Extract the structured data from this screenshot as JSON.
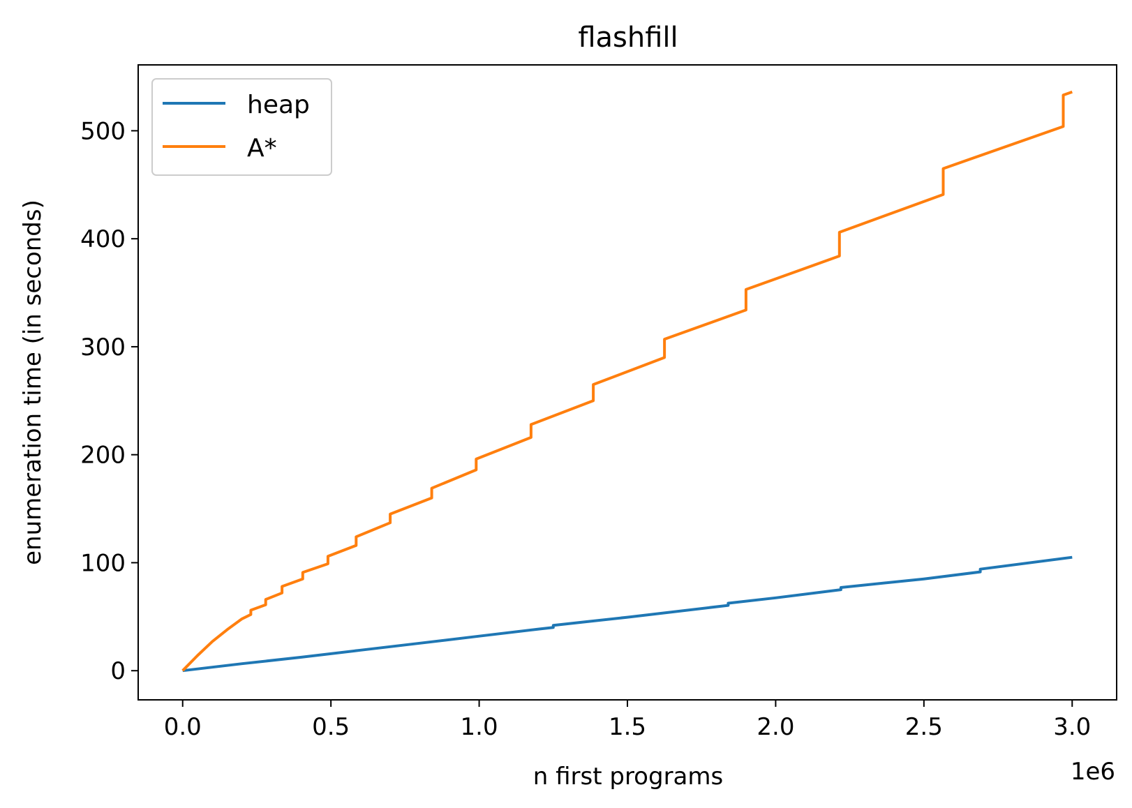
{
  "chart_data": {
    "type": "line",
    "title": "flashfill",
    "xlabel": "n first programs",
    "ylabel": "enumeration time (in seconds)",
    "x_offset_label": "1e6",
    "xlim": [
      -0.15,
      3.15
    ],
    "ylim": [
      -27,
      561
    ],
    "xticks": [
      0.0,
      0.5,
      1.0,
      1.5,
      2.0,
      2.5,
      3.0
    ],
    "xtick_labels": [
      "0.0",
      "0.5",
      "1.0",
      "1.5",
      "2.0",
      "2.5",
      "3.0"
    ],
    "yticks": [
      0,
      100,
      200,
      300,
      400,
      500
    ],
    "ytick_labels": [
      "0",
      "100",
      "200",
      "300",
      "400",
      "500"
    ],
    "grid": false,
    "legend_position": "top-left",
    "series": [
      {
        "name": "heap",
        "color": "#1f77b4",
        "x": [
          0.0,
          0.2,
          0.4,
          0.6,
          0.8,
          1.0,
          1.2,
          1.25,
          1.25,
          1.5,
          1.84,
          1.84,
          2.0,
          2.22,
          2.22,
          2.5,
          2.69,
          2.69,
          3.0
        ],
        "y": [
          0,
          6.5,
          12.5,
          19,
          25.5,
          32,
          38.5,
          40,
          42,
          49.5,
          60.5,
          62.5,
          67.5,
          75,
          77,
          85,
          91.5,
          94,
          105
        ]
      },
      {
        "name": "A*",
        "color": "#ff7f0e",
        "x": [
          0.0,
          0.05,
          0.1,
          0.15,
          0.2,
          0.23,
          0.23,
          0.28,
          0.28,
          0.335,
          0.335,
          0.405,
          0.405,
          0.49,
          0.49,
          0.585,
          0.585,
          0.7,
          0.7,
          0.84,
          0.84,
          0.99,
          0.99,
          1.175,
          1.175,
          1.385,
          1.385,
          1.625,
          1.625,
          1.9,
          1.9,
          2.215,
          2.215,
          2.565,
          2.565,
          2.97,
          2.97,
          3.0
        ],
        "y": [
          0,
          14,
          27,
          38,
          48,
          52,
          56,
          61,
          66,
          72,
          78,
          85,
          91,
          99,
          106,
          116,
          124,
          137,
          145,
          160,
          169,
          186,
          196,
          216,
          228,
          250,
          265,
          290,
          307,
          334,
          353,
          384,
          406,
          441,
          465,
          504,
          533,
          536
        ]
      }
    ]
  }
}
